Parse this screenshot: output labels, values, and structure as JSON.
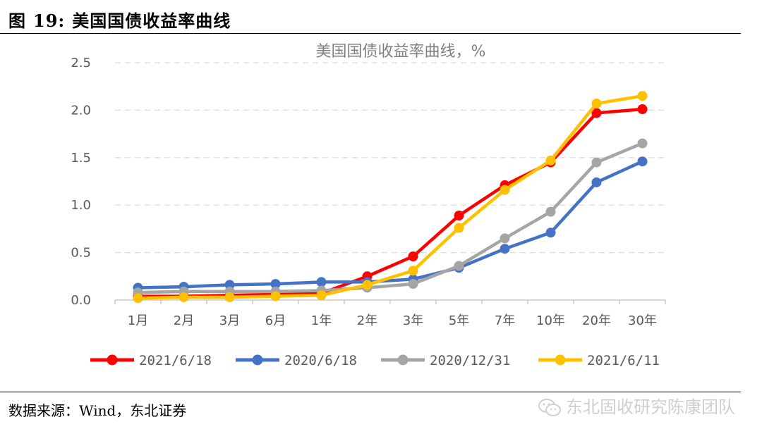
{
  "figure": {
    "label": "图",
    "number": "19:",
    "title": "美国国债收益率曲线"
  },
  "source": "数据来源：Wind，东北证券",
  "watermark": "东北固收研究陈康团队",
  "chart_data": {
    "type": "line",
    "title": "美国国债收益率曲线，%",
    "xlabel": "",
    "ylabel": "",
    "categories": [
      "1月",
      "2月",
      "3月",
      "6月",
      "1年",
      "2年",
      "3年",
      "5年",
      "7年",
      "10年",
      "20年",
      "30年"
    ],
    "yticks": [
      "0.0",
      "0.5",
      "1.0",
      "1.5",
      "2.0",
      "2.5"
    ],
    "ylim": [
      0,
      2.5
    ],
    "grid": true,
    "legend_position": "bottom",
    "series": [
      {
        "name": "2021/6/18",
        "color": "#ff0000",
        "values": [
          0.04,
          0.04,
          0.05,
          0.06,
          0.07,
          0.25,
          0.46,
          0.89,
          1.21,
          1.45,
          1.97,
          2.01
        ]
      },
      {
        "name": "2020/6/18",
        "color": "#4472c4",
        "values": [
          0.13,
          0.14,
          0.16,
          0.17,
          0.19,
          0.19,
          0.22,
          0.34,
          0.54,
          0.71,
          1.24,
          1.46
        ]
      },
      {
        "name": "2020/12/31",
        "color": "#a5a5a5",
        "values": [
          0.08,
          0.09,
          0.09,
          0.09,
          0.1,
          0.13,
          0.17,
          0.36,
          0.65,
          0.93,
          1.45,
          1.65
        ]
      },
      {
        "name": "2021/6/11",
        "color": "#ffc000",
        "values": [
          0.02,
          0.03,
          0.03,
          0.04,
          0.05,
          0.16,
          0.31,
          0.76,
          1.16,
          1.47,
          2.07,
          2.15
        ]
      }
    ]
  }
}
